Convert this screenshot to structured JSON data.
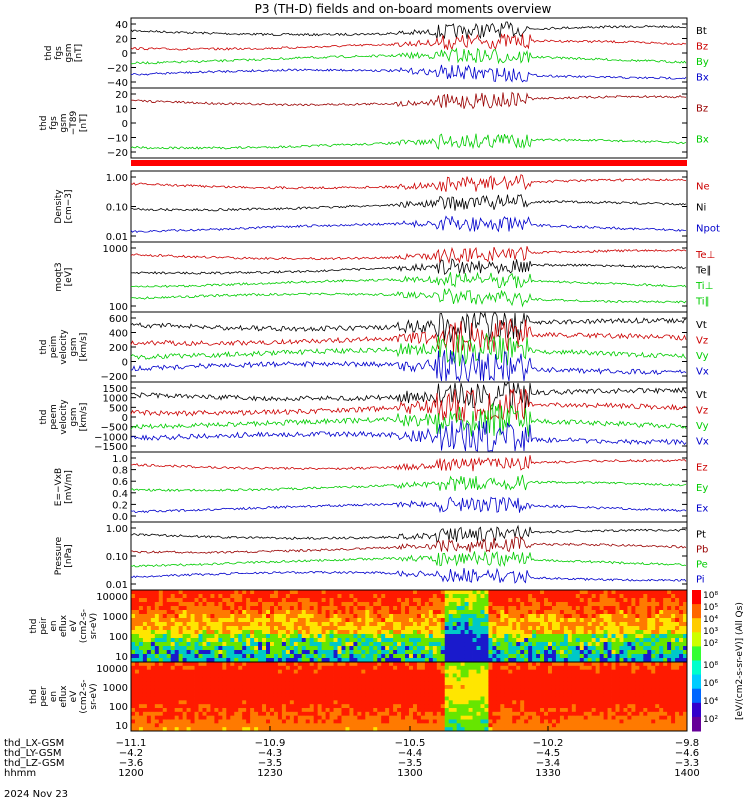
{
  "title": "P3 (TH-D) fields and on-board moments overview",
  "date": "2024 Nov 23",
  "colors": {
    "black": "#000000",
    "red": "#cc0000",
    "green": "#00cc00",
    "blue": "#0000cc",
    "darkred": "#990000"
  },
  "chart_data": [
    {
      "type": "line",
      "ylabel": [
        "thd",
        "fgs",
        "gsm",
        "[nT]"
      ],
      "yticks": [
        "40",
        "20",
        "0",
        "−20",
        "−40"
      ],
      "ylim": [
        -50,
        50
      ],
      "series": [
        {
          "name": "Bt",
          "color": "black"
        },
        {
          "name": "Bz",
          "color": "red"
        },
        {
          "name": "By",
          "color": "green"
        },
        {
          "name": "Bx",
          "color": "blue"
        }
      ]
    },
    {
      "type": "line",
      "ylabel": [
        "thd",
        "fgs",
        "gsm",
        "−T89",
        "[nT]"
      ],
      "yticks": [
        "20",
        "10",
        "0",
        "−10",
        "−20"
      ],
      "ylim": [
        -28,
        28
      ],
      "series": [
        {
          "name": "Bz",
          "color": "darkred"
        },
        {
          "name": "Bx",
          "color": "green"
        }
      ]
    },
    {
      "type": "line",
      "ylabel": [
        "Density",
        "[cm−3]"
      ],
      "yticks": [
        "1.00",
        "0.10",
        "0.01"
      ],
      "log": true,
      "series": [
        {
          "name": "Ne",
          "color": "red"
        },
        {
          "name": "Ni",
          "color": "black"
        },
        {
          "name": "Npot",
          "color": "blue"
        }
      ]
    },
    {
      "type": "line",
      "ylabel": [
        "moqt3",
        "[eV]"
      ],
      "yticks": [
        "1000",
        "100"
      ],
      "log": true,
      "series": [
        {
          "name": "Te⊥",
          "color": "red"
        },
        {
          "name": "Te∥",
          "color": "black"
        },
        {
          "name": "Ti⊥",
          "color": "green"
        },
        {
          "name": "Ti∥",
          "color": "green"
        }
      ]
    },
    {
      "type": "line",
      "ylabel": [
        "thd",
        "peim",
        "velocity",
        "gsm",
        "[km/s]"
      ],
      "yticks": [
        "600",
        "400",
        "200",
        "0",
        "−200"
      ],
      "ylim": [
        -300,
        750
      ],
      "series": [
        {
          "name": "Vt",
          "color": "black"
        },
        {
          "name": "Vz",
          "color": "red"
        },
        {
          "name": "Vy",
          "color": "green"
        },
        {
          "name": "Vx",
          "color": "blue"
        }
      ]
    },
    {
      "type": "line",
      "ylabel": [
        "thd",
        "peem",
        "velocity",
        "gsm",
        "[km/s]"
      ],
      "yticks": [
        "1500",
        "1000",
        "500",
        "0",
        "−500",
        "−1000",
        "−1500"
      ],
      "ylim": [
        -1500,
        1500
      ],
      "series": [
        {
          "name": "Vt",
          "color": "black"
        },
        {
          "name": "Vz",
          "color": "red"
        },
        {
          "name": "Vy",
          "color": "green"
        },
        {
          "name": "Vx",
          "color": "blue"
        }
      ]
    },
    {
      "type": "line",
      "ylabel": [
        "E=−VxB",
        "[mV/m]"
      ],
      "yticks": [
        "1.0",
        "0.8",
        "0.6",
        "0.4",
        "0.2",
        "0.0"
      ],
      "ylim": [
        0,
        1
      ],
      "series": [
        {
          "name": "Ez",
          "color": "red"
        },
        {
          "name": "Ey",
          "color": "green"
        },
        {
          "name": "Ex",
          "color": "blue"
        }
      ]
    },
    {
      "type": "line",
      "ylabel": [
        "Pressure",
        "[nPa]"
      ],
      "yticks": [
        "1.00",
        "0.10",
        "0.01"
      ],
      "log": true,
      "series": [
        {
          "name": "Pt",
          "color": "black"
        },
        {
          "name": "Pb",
          "color": "darkred"
        },
        {
          "name": "Pe",
          "color": "green"
        },
        {
          "name": "Pi",
          "color": "blue"
        }
      ]
    },
    {
      "type": "heatmap",
      "ylabel": [
        "thd",
        "peir",
        "en",
        "eflux",
        "eV",
        "(cm2-s-",
        "sr-eV)"
      ],
      "yticks": [
        "10000",
        "1000",
        "100",
        "10"
      ],
      "log": true
    },
    {
      "type": "heatmap",
      "ylabel": [
        "thd",
        "peer",
        "en",
        "eflux",
        "eV",
        "(cm2-s-",
        "sr-eV)"
      ],
      "yticks": [
        "10000",
        "1000",
        "100",
        "10"
      ],
      "log": true
    }
  ],
  "colorbar": {
    "ticks_top": [
      "10⁸",
      "10⁵",
      "10⁴",
      "10³",
      "10²"
    ],
    "ticks_bottom": [
      "10⁸",
      "10⁶",
      "10⁴",
      "10²"
    ],
    "label": "[eV/(cm2-s-sr-eV)] (All Qs)"
  },
  "xaxis": {
    "rows": [
      {
        "label": "thd_LX-GSM",
        "values": [
          "−11.1",
          "−10.9",
          "−10.5",
          "−10.2",
          "−9.8"
        ]
      },
      {
        "label": "thd_LY-GSM",
        "values": [
          "−4.2",
          "−4.3",
          "−4.4",
          "−4.5",
          "−4.6"
        ]
      },
      {
        "label": "thd_LZ-GSM",
        "values": [
          "−3.6",
          "−3.5",
          "−3.5",
          "−3.4",
          "−3.3"
        ]
      },
      {
        "label": "hhmm",
        "values": [
          "1200",
          "1230",
          "1300",
          "1330",
          "1400"
        ]
      }
    ]
  }
}
